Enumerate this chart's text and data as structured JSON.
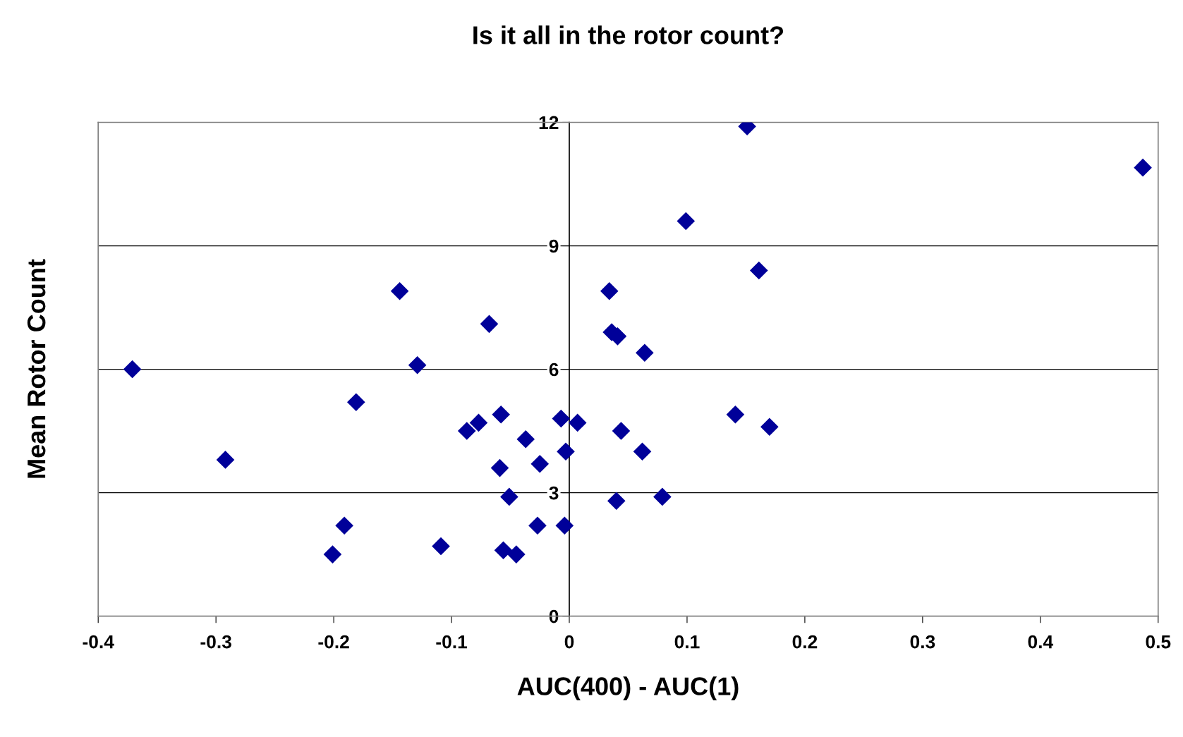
{
  "chart_data": {
    "type": "scatter",
    "title": "Is it all in the rotor count?",
    "xlabel": "AUC(400) - AUC(1)",
    "ylabel": "Mean Rotor Count",
    "x": [
      -0.371,
      -0.292,
      -0.201,
      -0.191,
      -0.181,
      -0.144,
      -0.129,
      -0.109,
      -0.087,
      -0.077,
      -0.068,
      -0.059,
      -0.058,
      -0.056,
      -0.051,
      -0.045,
      -0.037,
      -0.027,
      -0.025,
      -0.007,
      -0.004,
      -0.003,
      0.007,
      0.034,
      0.036,
      0.041,
      0.04,
      0.044,
      0.062,
      0.064,
      0.079,
      0.099,
      0.141,
      0.151,
      0.161,
      0.17,
      0.487
    ],
    "values": [
      6.0,
      3.8,
      1.5,
      2.2,
      5.2,
      7.9,
      6.1,
      1.7,
      4.5,
      4.7,
      7.1,
      3.6,
      4.9,
      1.6,
      2.9,
      1.5,
      4.3,
      2.2,
      3.7,
      4.8,
      2.2,
      4.0,
      4.7,
      7.9,
      6.9,
      6.8,
      2.8,
      4.5,
      4.0,
      6.4,
      2.9,
      9.6,
      4.9,
      11.9,
      8.4,
      4.6,
      10.9
    ],
    "color": "#000099",
    "marker": "diamond",
    "xlim": [
      -0.4,
      0.5
    ],
    "xticks": [
      -0.4,
      -0.3,
      -0.2,
      -0.1,
      0,
      0.1,
      0.2,
      0.3,
      0.4,
      0.5
    ],
    "ylim": [
      0,
      12
    ],
    "yticks": [
      0,
      3,
      6,
      9,
      12
    ],
    "grid": "y"
  }
}
